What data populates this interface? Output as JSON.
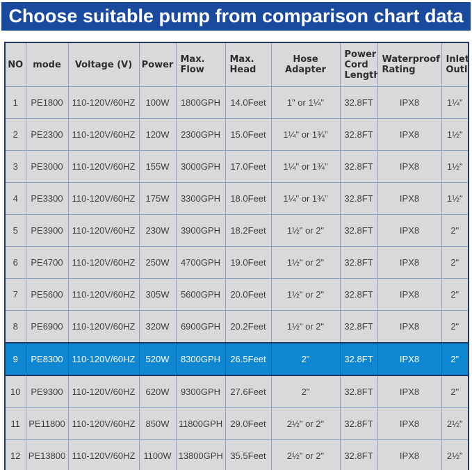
{
  "banner": {
    "title": "Choose suitable pump from comparison chart data"
  },
  "colors": {
    "banner_bg": "#1a4a9e",
    "banner_text": "#ffffff",
    "cell_bg": "#d9d9d9",
    "grid_line": "#8aa3c3",
    "outer_border": "#23365e",
    "highlight_bg": "#0f87d2",
    "highlight_text": "#ffffff",
    "body_text": "#404040"
  },
  "chart_data": {
    "type": "table",
    "columns": [
      "NO",
      "mode",
      "Voltage (V)",
      "Power",
      "Max. Flow",
      "Max. Head",
      "Hose Adapter",
      "Power Cord Length",
      "Waterproof Rating",
      "Inlet/ Outlet"
    ],
    "highlighted_row_no": "9",
    "rows": [
      [
        "1",
        "PE1800",
        "110-120V/60HZ",
        "100W",
        "1800GPH",
        "14.0Feet",
        "1\" or 1¼\"",
        "32.8FT",
        "IPX8",
        "1¼\""
      ],
      [
        "2",
        "PE2300",
        "110-120V/60HZ",
        "120W",
        "2300GPH",
        "15.0Feet",
        "1¼\" or 1¾\"",
        "32.8FT",
        "IPX8",
        "1½\""
      ],
      [
        "3",
        "PE3000",
        "110-120V/60HZ",
        "155W",
        "3000GPH",
        "17.0Feet",
        "1¼\" or 1¾\"",
        "32.8FT",
        "IPX8",
        "1½\""
      ],
      [
        "4",
        "PE3300",
        "110-120V/60HZ",
        "175W",
        "3300GPH",
        "18.0Feet",
        "1¼\" or 1¾\"",
        "32.8FT",
        "IPX8",
        "1½\""
      ],
      [
        "5",
        "PE3900",
        "110-120V/60HZ",
        "230W",
        "3900GPH",
        "18.2Feet",
        "1½\" or 2\"",
        "32.8FT",
        "IPX8",
        "2\""
      ],
      [
        "6",
        "PE4700",
        "110-120V/60HZ",
        "250W",
        "4700GPH",
        "19.0Feet",
        "1½\" or 2\"",
        "32.8FT",
        "IPX8",
        "2\""
      ],
      [
        "7",
        "PE5600",
        "110-120V/60HZ",
        "305W",
        "5600GPH",
        "20.0Feet",
        "1½\" or 2\"",
        "32.8FT",
        "IPX8",
        "2\""
      ],
      [
        "8",
        "PE6900",
        "110-120V/60HZ",
        "320W",
        "6900GPH",
        "20.2Feet",
        "1½\" or 2\"",
        "32.8FT",
        "IPX8",
        "2\""
      ],
      [
        "9",
        "PE8300",
        "110-120V/60HZ",
        "520W",
        "8300GPH",
        "26.5Feet",
        "2\"",
        "32.8FT",
        "IPX8",
        "2\""
      ],
      [
        "10",
        "PE9300",
        "110-120V/60HZ",
        "620W",
        "9300GPH",
        "27.6Feet",
        "2\"",
        "32.8FT",
        "IPX8",
        "2\""
      ],
      [
        "11",
        "PE11800",
        "110-120V/60HZ",
        "850W",
        "11800GPH",
        "29.0Feet",
        "2½\" or 2\"",
        "32.8FT",
        "IPX8",
        "2½\""
      ],
      [
        "12",
        "PE13800",
        "110-120V/60HZ",
        "1100W",
        "13800GPH",
        "35.5Feet",
        "2½\" or 2\"",
        "32.8FT",
        "IPX8",
        "2½\""
      ]
    ]
  }
}
